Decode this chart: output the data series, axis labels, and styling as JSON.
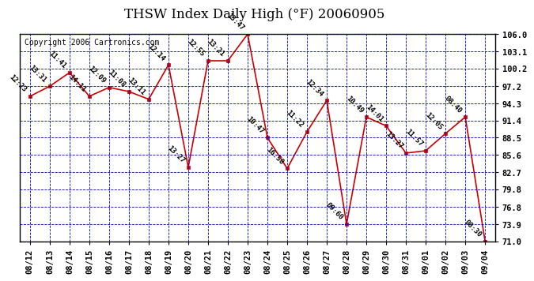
{
  "title": "THSW Index Daily High (°F) 20060905",
  "copyright": "Copyright 2006 Cartronics.com",
  "dates": [
    "08/12",
    "08/13",
    "08/14",
    "08/15",
    "08/16",
    "08/17",
    "08/18",
    "08/19",
    "08/20",
    "08/21",
    "08/22",
    "08/23",
    "08/24",
    "08/25",
    "08/26",
    "08/27",
    "08/28",
    "08/29",
    "08/30",
    "08/31",
    "09/01",
    "09/02",
    "09/03",
    "09/04"
  ],
  "values": [
    95.5,
    97.2,
    99.5,
    95.5,
    97.0,
    96.3,
    95.0,
    100.8,
    83.5,
    101.5,
    101.5,
    106.0,
    88.5,
    83.3,
    89.5,
    94.8,
    73.9,
    92.0,
    90.5,
    85.9,
    86.3,
    89.2,
    92.0,
    71.0
  ],
  "labels": [
    "12:23",
    "13:31",
    "11:41",
    "14:11",
    "12:09",
    "11:08",
    "13:11",
    "12:14",
    "13:27",
    "12:55",
    "13:21",
    "13:47",
    "10:47",
    "16:58",
    "11:22",
    "12:34",
    "09:60",
    "10:49",
    "14:01",
    "13:27",
    "11:57",
    "12:05",
    "08:40",
    "08:30"
  ],
  "ylim": [
    71.0,
    106.0
  ],
  "yticks": [
    71.0,
    73.9,
    76.8,
    79.8,
    82.7,
    85.6,
    88.5,
    91.4,
    94.3,
    97.2,
    100.2,
    103.1,
    106.0
  ],
  "line_color": "#cc0000",
  "marker_color": "#cc0000",
  "plot_bg": "#ffffff",
  "outer_bg": "#ffffff",
  "grid_color": "#0000bb",
  "title_fontsize": 12,
  "label_fontsize": 6.5,
  "tick_fontsize": 7.5,
  "copyright_fontsize": 7
}
